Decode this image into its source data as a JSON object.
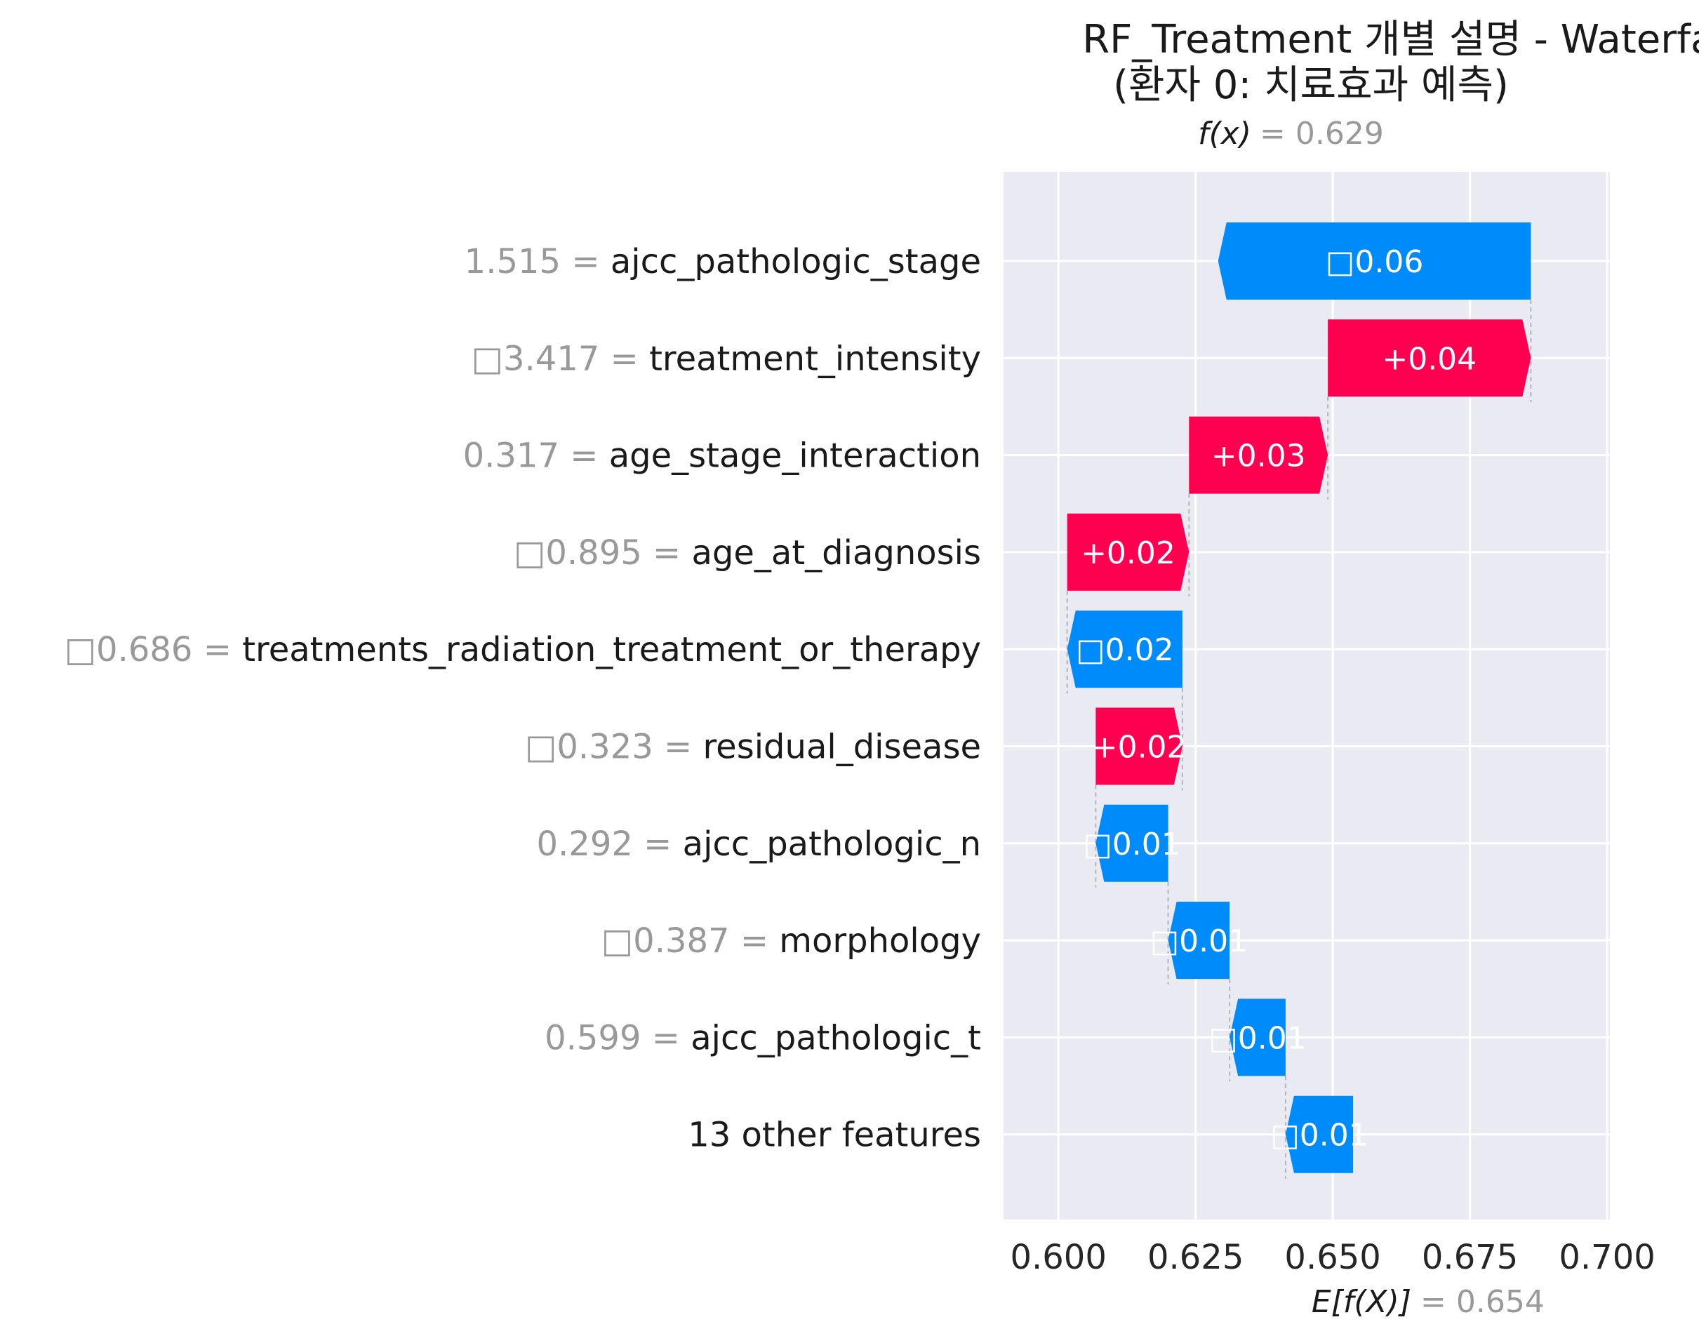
{
  "chart_data": {
    "type": "waterfall",
    "title": "RF_Treatment 개별 설명 - Waterfall Plot",
    "subtitle": "(환자 0: 치료효과 예측)",
    "fx_label": "f(x)",
    "fx_value": "= 0.629",
    "base_label": "E[f(X)]",
    "base_value_text": "= 0.654",
    "final_value": 0.6287,
    "base_value": 0.6537,
    "xlim": [
      0.59,
      0.7005
    ],
    "ticks": [
      0.6,
      0.625,
      0.65,
      0.675,
      0.7
    ],
    "tick_labels": [
      "0.600",
      "0.625",
      "0.650",
      "0.675",
      "0.700"
    ],
    "features": [
      {
        "value": "1.515",
        "name": "ajcc_pathologic_stage",
        "label": "□0.06",
        "delta": -0.057
      },
      {
        "value": "□3.417",
        "name": "treatment_intensity",
        "label": "+0.04",
        "delta": 0.037
      },
      {
        "value": "0.317",
        "name": "age_stage_interaction",
        "label": "+0.03",
        "delta": 0.0253
      },
      {
        "value": "□0.895",
        "name": "age_at_diagnosis",
        "label": "+0.02",
        "delta": 0.0222
      },
      {
        "value": "□0.686",
        "name": "treatments_radiation_treatment_or_therapy",
        "label": "□0.02",
        "delta": -0.021
      },
      {
        "value": "□0.323",
        "name": "residual_disease",
        "label": "+0.02",
        "delta": 0.0158
      },
      {
        "value": "0.292",
        "name": "ajcc_pathologic_n",
        "label": "□0.01",
        "delta": -0.0132
      },
      {
        "value": "□0.387",
        "name": "morphology",
        "label": "□0.01",
        "delta": -0.0112
      },
      {
        "value": "0.599",
        "name": "ajcc_pathologic_t",
        "label": "□0.01",
        "delta": -0.0102
      },
      {
        "value": "",
        "name": "13 other features",
        "label": "□0.01",
        "delta": -0.0123
      }
    ],
    "colors": {
      "positive": "#ff0051",
      "negative": "#008bfb",
      "plot_bg": "#eaeaf2",
      "grid": "#ffffff",
      "value_text": "#999999",
      "name_text": "#1a1a1a"
    }
  }
}
